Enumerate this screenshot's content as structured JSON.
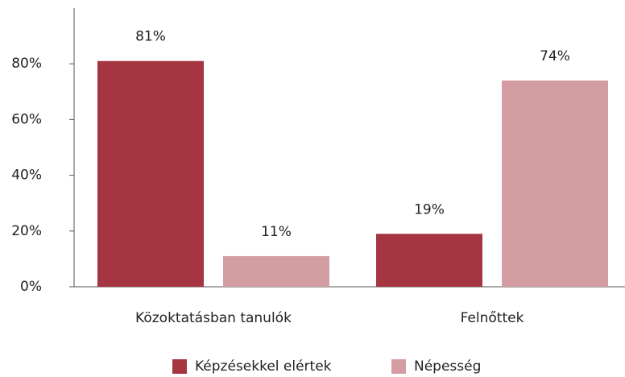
{
  "chart_data": {
    "type": "bar",
    "categories": [
      "Közoktatásban tanulók",
      "Felnőttek"
    ],
    "series": [
      {
        "name": "Képzésekkel elértek",
        "color": "#a53541",
        "values": [
          81,
          19
        ],
        "value_labels": [
          "81%",
          "19%"
        ]
      },
      {
        "name": "Népesség",
        "color": "#d49da2",
        "values": [
          11,
          74
        ],
        "value_labels": [
          "11%",
          "74%"
        ]
      }
    ],
    "ylim": [
      0,
      100
    ],
    "yticks": [
      {
        "value": 0,
        "label": "0%"
      },
      {
        "value": 20,
        "label": "20%"
      },
      {
        "value": 40,
        "label": "40%"
      },
      {
        "value": 60,
        "label": "60%"
      },
      {
        "value": 80,
        "label": "80%"
      }
    ],
    "legend": "bottom"
  }
}
